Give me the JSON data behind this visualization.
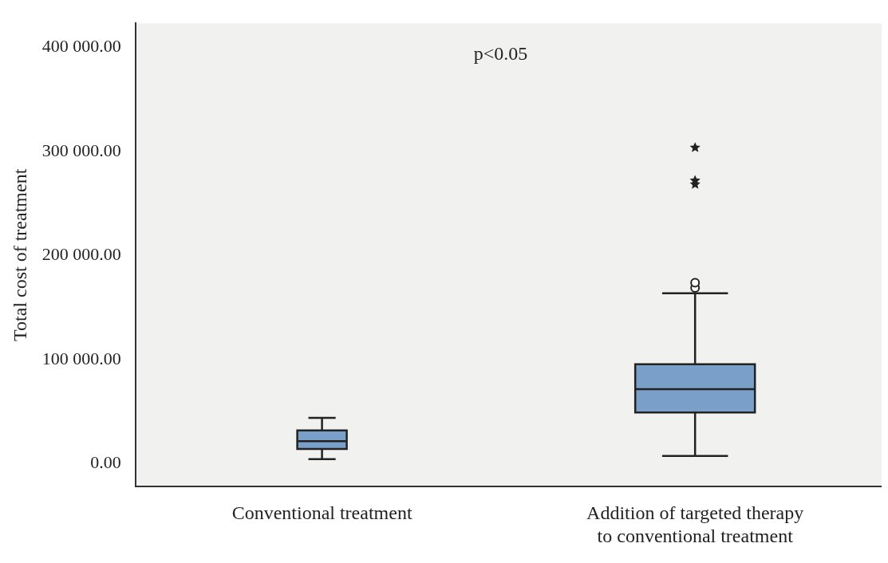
{
  "chart_data": {
    "type": "box",
    "ylabel": "Total cost of treatment",
    "categories": [
      "Conventional treatment",
      "Addition of targeted therapy to conventional treatment"
    ],
    "boxes": [
      {
        "low": 4500,
        "q1": 14200,
        "median": 21700,
        "q3": 32100,
        "high": 44100
      },
      {
        "low": 7500,
        "q1": 49300,
        "median": 71800,
        "q3": 95700,
        "high": 163700,
        "outliers": [
          169000,
          174000,
          268400,
          272000,
          303600
        ]
      }
    ],
    "color": "#7a9fc9",
    "ylim": [
      -22000,
      423000
    ],
    "yticks": [
      {
        "value": 0,
        "label": "0.00"
      },
      {
        "value": 100000,
        "label": "100 000.00"
      },
      {
        "value": 200000,
        "label": "200 000.00"
      },
      {
        "value": 300000,
        "label": "300 000.00"
      },
      {
        "value": 400000,
        "label": "400 000.00"
      }
    ],
    "grid": false,
    "annotations": [
      "p<0.05"
    ]
  }
}
